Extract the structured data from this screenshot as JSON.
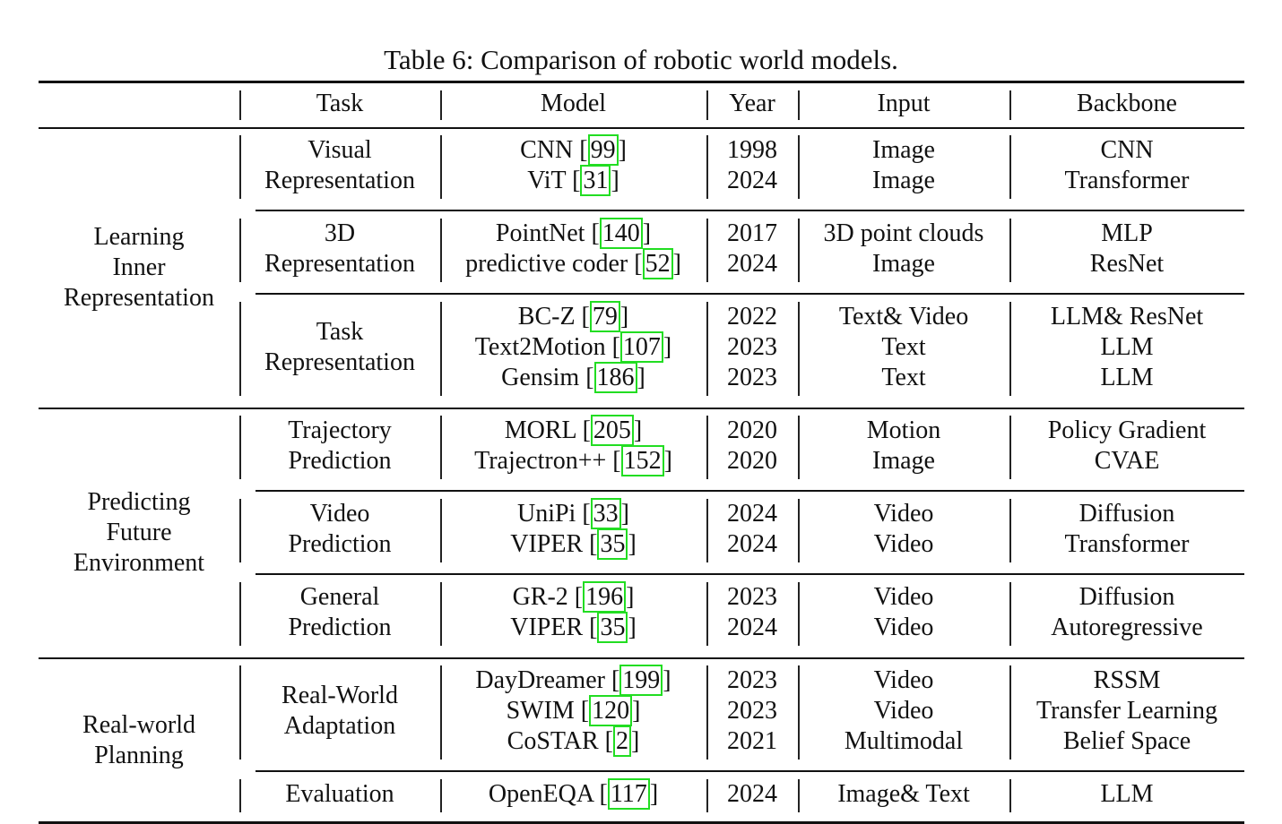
{
  "caption": "Table 6: Comparison of robotic world models.",
  "headers": [
    "",
    "Task",
    "Model",
    "Year",
    "Input",
    "Backbone"
  ],
  "categories": [
    {
      "label": [
        "Learning",
        "Inner",
        "Representation"
      ],
      "groups": [
        {
          "task": [
            "Visual",
            "Representation"
          ],
          "rows": [
            {
              "model": "CNN",
              "ref": "99",
              "year": "1998",
              "input": "Image",
              "backbone": "CNN"
            },
            {
              "model": "ViT",
              "ref": "31",
              "year": "2024",
              "input": "Image",
              "backbone": "Transformer"
            }
          ]
        },
        {
          "task": [
            "3D",
            "Representation"
          ],
          "rows": [
            {
              "model": "PointNet",
              "ref": "140",
              "year": "2017",
              "input": "3D point clouds",
              "backbone": "MLP"
            },
            {
              "model": "predictive coder",
              "ref": "52",
              "year": "2024",
              "input": "Image",
              "backbone": "ResNet"
            }
          ]
        },
        {
          "task": [
            "Task",
            "Representation"
          ],
          "rows": [
            {
              "model": "BC-Z",
              "ref": "79",
              "year": "2022",
              "input": "Text& Video",
              "backbone": "LLM& ResNet"
            },
            {
              "model": "Text2Motion",
              "ref": "107",
              "year": "2023",
              "input": "Text",
              "backbone": "LLM"
            },
            {
              "model": "Gensim",
              "ref": "186",
              "year": "2023",
              "input": "Text",
              "backbone": "LLM"
            }
          ]
        }
      ]
    },
    {
      "label": [
        "Predicting",
        "Future",
        "Environment"
      ],
      "groups": [
        {
          "task": [
            "Trajectory",
            "Prediction"
          ],
          "rows": [
            {
              "model": "MORL",
              "ref": "205",
              "year": "2020",
              "input": "Motion",
              "backbone": "Policy Gradient"
            },
            {
              "model": "Trajectron++",
              "ref": "152",
              "year": "2020",
              "input": "Image",
              "backbone": "CVAE"
            }
          ]
        },
        {
          "task": [
            "Video",
            "Prediction"
          ],
          "rows": [
            {
              "model": "UniPi",
              "ref": "33",
              "year": "2024",
              "input": "Video",
              "backbone": "Diffusion"
            },
            {
              "model": "VIPER",
              "ref": "35",
              "year": "2024",
              "input": "Video",
              "backbone": "Transformer"
            }
          ]
        },
        {
          "task": [
            "General",
            "Prediction"
          ],
          "rows": [
            {
              "model": "GR-2",
              "ref": "196",
              "year": "2023",
              "input": "Video",
              "backbone": "Diffusion"
            },
            {
              "model": "VIPER",
              "ref": "35",
              "year": "2024",
              "input": "Video",
              "backbone": "Autoregressive"
            }
          ]
        }
      ]
    },
    {
      "label": [
        "Real-world",
        "Planning"
      ],
      "groups": [
        {
          "task": [
            "Real-World",
            "Adaptation"
          ],
          "rows": [
            {
              "model": "DayDreamer",
              "ref": "199",
              "year": "2023",
              "input": "Video",
              "backbone": "RSSM"
            },
            {
              "model": "SWIM",
              "ref": "120",
              "year": "2023",
              "input": "Video",
              "backbone": "Transfer Learning"
            },
            {
              "model": "CoSTAR",
              "ref": "2",
              "year": "2021",
              "input": "Multimodal",
              "backbone": "Belief Space"
            }
          ]
        },
        {
          "task": [
            "Evaluation"
          ],
          "rows": [
            {
              "model": "OpenEQA",
              "ref": "117",
              "year": "2024",
              "input": "Image& Text",
              "backbone": "LLM"
            }
          ]
        }
      ]
    }
  ]
}
